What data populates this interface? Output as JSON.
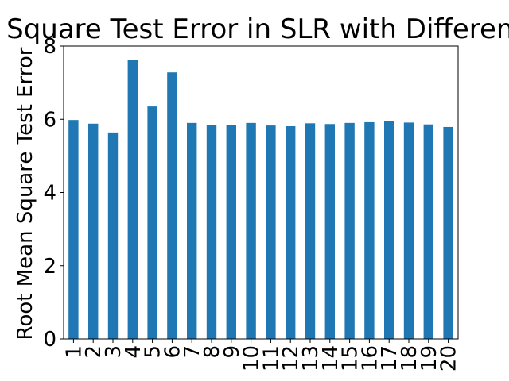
{
  "chart_data": {
    "type": "bar",
    "title": "Root Mean Square Test Error in SLR with Different Predictors",
    "xlabel": "",
    "ylabel": "Root Mean Square Test Error",
    "categories": [
      "1",
      "2",
      "3",
      "4",
      "5",
      "6",
      "7",
      "8",
      "9",
      "10",
      "11",
      "12",
      "13",
      "14",
      "15",
      "16",
      "17",
      "18",
      "19",
      "20"
    ],
    "values": [
      5.98,
      5.88,
      5.64,
      7.62,
      6.35,
      7.28,
      5.9,
      5.85,
      5.85,
      5.9,
      5.83,
      5.81,
      5.89,
      5.87,
      5.9,
      5.92,
      5.96,
      5.91,
      5.86,
      5.79
    ],
    "ylim": [
      0,
      8
    ],
    "yticks": [
      0,
      2,
      4,
      6,
      8
    ],
    "bar_color": "#1f77b4",
    "grid": false,
    "legend": "none"
  }
}
